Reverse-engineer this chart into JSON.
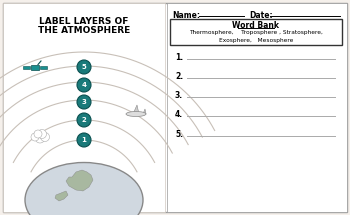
{
  "title_line1": "LABEL LAYERS OF",
  "title_line2": "THE ATMOSPHERE",
  "background_color": "#f5f0eb",
  "name_label": "Name:",
  "date_label": "Date:",
  "word_bank_title": "Word Bank",
  "word_bank_line1": "Thermosphere,    Troposphere , Stratosphere,",
  "word_bank_line2": "Exosphere,   Mesosphere",
  "numbered_lines": [
    "1.",
    "2.",
    "3.",
    "4.",
    "5."
  ],
  "circle_numbers": [
    "1",
    "2",
    "3",
    "4",
    "5"
  ],
  "circle_color": "#1a7a7a",
  "circle_text_color": "#ffffff",
  "arc_color": "#c8c0b8",
  "globe_color": "#b0b8c0",
  "left_panel_border": "#d0c8c0",
  "right_panel_border": "#444444"
}
